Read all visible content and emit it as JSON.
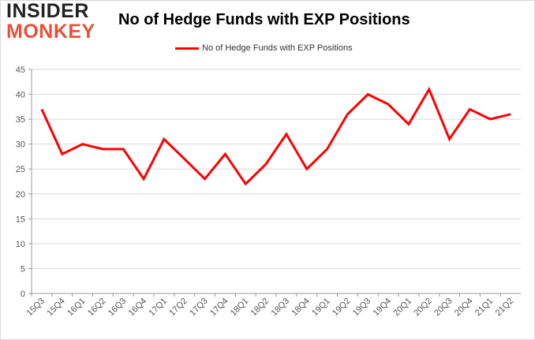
{
  "brand": {
    "line1": "INSIDER",
    "line2": "MONKEY"
  },
  "colors": {
    "series": "#ff0000",
    "grid": "#d9d9d9",
    "logo_accent": "#e8513a"
  },
  "chart_data": {
    "type": "line",
    "title": "No of Hedge Funds with EXP Positions",
    "legend_position": "top",
    "grid": true,
    "ylim": [
      0,
      45
    ],
    "yticks": [
      0,
      5,
      10,
      15,
      20,
      25,
      30,
      35,
      40,
      45
    ],
    "categories": [
      "15Q3",
      "15Q4",
      "16Q1",
      "16Q2",
      "16Q3",
      "16Q4",
      "17Q1",
      "17Q2",
      "17Q3",
      "17Q4",
      "18Q1",
      "18Q2",
      "18Q3",
      "18Q4",
      "19Q1",
      "19Q2",
      "19Q3",
      "19Q4",
      "20Q1",
      "20Q2",
      "20Q3",
      "20Q4",
      "21Q1",
      "21Q2"
    ],
    "series": [
      {
        "name": "No of Hedge Funds with EXP Positions",
        "values": [
          37,
          28,
          30,
          29,
          29,
          23,
          31,
          27,
          23,
          28,
          22,
          26,
          32,
          25,
          29,
          36,
          40,
          38,
          34,
          41,
          31,
          37,
          35,
          36
        ]
      }
    ]
  }
}
